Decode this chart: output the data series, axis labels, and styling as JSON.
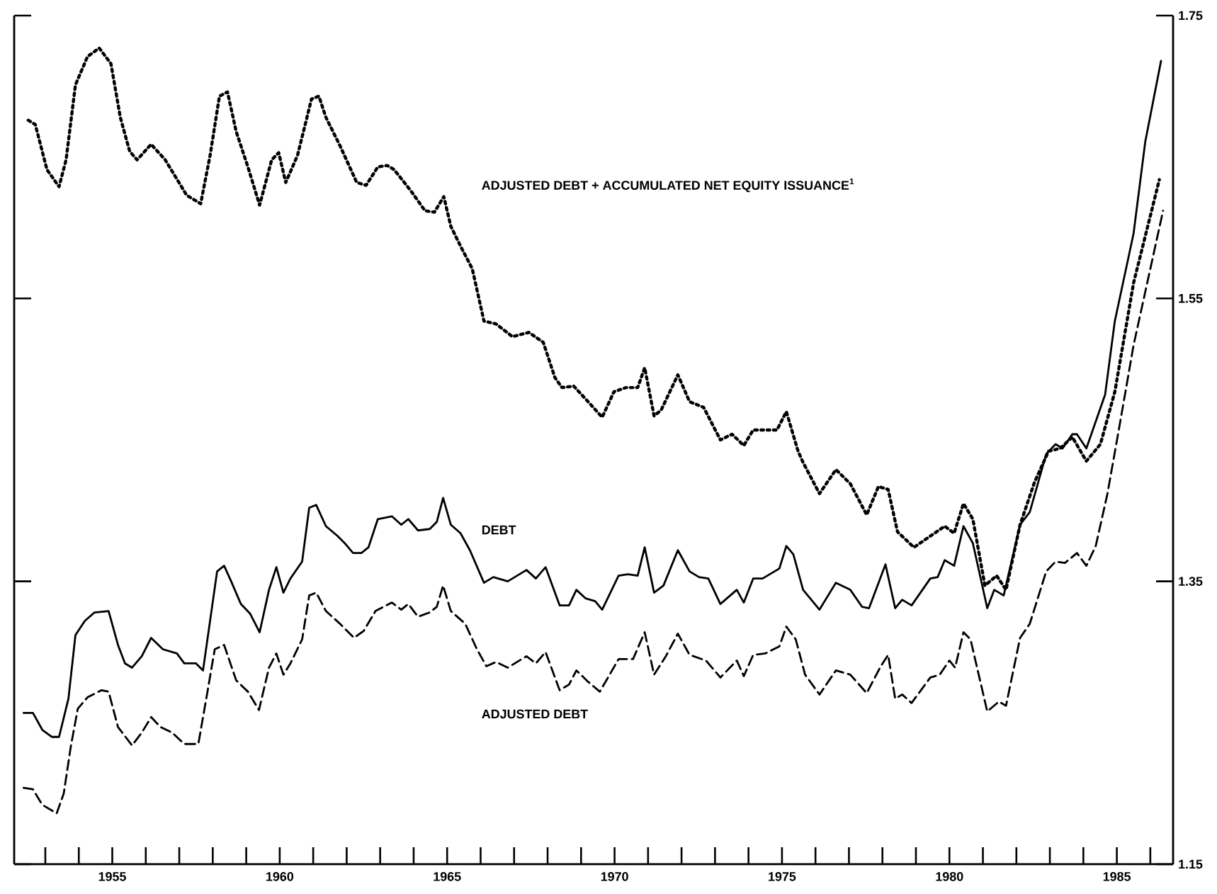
{
  "chart_data": {
    "type": "line",
    "xlim": [
      1952.07,
      1986.68
    ],
    "xticks": [
      {
        "value": 1953,
        "label": null
      },
      {
        "value": 1954,
        "label": null
      },
      1955,
      {
        "value": 1956,
        "label": null
      },
      {
        "value": 1957,
        "label": null
      },
      {
        "value": 1958,
        "label": null
      },
      {
        "value": 1959,
        "label": null
      },
      1960,
      {
        "value": 1961,
        "label": null
      },
      {
        "value": 1962,
        "label": null
      },
      {
        "value": 1963,
        "label": null
      },
      {
        "value": 1964,
        "label": null
      },
      1965,
      {
        "value": 1966,
        "label": null
      },
      {
        "value": 1967,
        "label": null
      },
      {
        "value": 1968,
        "label": null
      },
      {
        "value": 1969,
        "label": null
      },
      1970,
      {
        "value": 1971,
        "label": null
      },
      {
        "value": 1972,
        "label": null
      },
      {
        "value": 1973,
        "label": null
      },
      {
        "value": 1974,
        "label": null
      },
      1975,
      {
        "value": 1976,
        "label": null
      },
      {
        "value": 1977,
        "label": null
      },
      {
        "value": 1978,
        "label": null
      },
      {
        "value": 1979,
        "label": null
      },
      1980,
      {
        "value": 1981,
        "label": null
      },
      {
        "value": 1982,
        "label": null
      },
      {
        "value": 1983,
        "label": null
      },
      {
        "value": 1984,
        "label": null
      },
      1985,
      {
        "value": 1986,
        "label": null
      }
    ],
    "ylim": [
      1.15,
      1.75
    ],
    "yticks": [
      1.15,
      1.35,
      1.55,
      1.75
    ],
    "grid": false,
    "legend": false,
    "series": [
      {
        "name": "DEBT",
        "color": "#000000",
        "line_style": "solid",
        "x": [
          1952.35,
          1952.63,
          1952.91,
          1953.2,
          1953.41,
          1953.69,
          1953.9,
          1954.18,
          1954.47,
          1954.89,
          1955.17,
          1955.38,
          1955.59,
          1955.88,
          1956.16,
          1956.51,
          1956.93,
          1957.15,
          1957.5,
          1957.71,
          1958.13,
          1958.34,
          1958.55,
          1958.84,
          1959.12,
          1959.4,
          1959.68,
          1959.9,
          1960.11,
          1960.32,
          1960.67,
          1960.88,
          1961.09,
          1961.38,
          1961.73,
          1961.94,
          1962.19,
          1962.44,
          1962.65,
          1962.93,
          1963.35,
          1963.63,
          1963.84,
          1964.13,
          1964.48,
          1964.69,
          1964.88,
          1965.11,
          1965.4,
          1965.68,
          1966.1,
          1966.38,
          1966.81,
          1967.37,
          1967.65,
          1967.94,
          1968.36,
          1968.64,
          1968.86,
          1969.13,
          1969.42,
          1969.63,
          1970.12,
          1970.4,
          1970.69,
          1970.9,
          1971.18,
          1971.46,
          1971.89,
          1972.24,
          1972.52,
          1972.8,
          1973.16,
          1973.65,
          1973.86,
          1974.14,
          1974.42,
          1974.92,
          1975.13,
          1975.34,
          1975.63,
          1976.12,
          1976.61,
          1977.04,
          1977.39,
          1977.6,
          1978.09,
          1978.38,
          1978.59,
          1978.87,
          1979.43,
          1979.65,
          1979.86,
          1980.14,
          1980.42,
          1980.7,
          1981.13,
          1981.34,
          1981.62,
          1982.11,
          1982.4,
          1982.89,
          1983.17,
          1983.38,
          1983.67,
          1983.81,
          1984.09,
          1984.65,
          1984.94,
          1985.5,
          1985.85,
          1986.32
        ],
        "values": [
          1.257,
          1.257,
          1.245,
          1.24,
          1.24,
          1.267,
          1.312,
          1.322,
          1.328,
          1.329,
          1.305,
          1.292,
          1.289,
          1.297,
          1.31,
          1.302,
          1.299,
          1.292,
          1.292,
          1.287,
          1.357,
          1.361,
          1.35,
          1.334,
          1.327,
          1.314,
          1.344,
          1.36,
          1.342,
          1.352,
          1.364,
          1.402,
          1.404,
          1.389,
          1.382,
          1.377,
          1.37,
          1.37,
          1.374,
          1.394,
          1.396,
          1.39,
          1.394,
          1.386,
          1.387,
          1.392,
          1.409,
          1.39,
          1.384,
          1.372,
          1.349,
          1.353,
          1.35,
          1.358,
          1.352,
          1.36,
          1.333,
          1.333,
          1.344,
          1.338,
          1.336,
          1.33,
          1.354,
          1.355,
          1.354,
          1.374,
          1.342,
          1.347,
          1.372,
          1.357,
          1.353,
          1.352,
          1.334,
          1.344,
          1.335,
          1.352,
          1.352,
          1.359,
          1.375,
          1.369,
          1.344,
          1.33,
          1.349,
          1.344,
          1.332,
          1.331,
          1.362,
          1.331,
          1.337,
          1.333,
          1.352,
          1.353,
          1.365,
          1.361,
          1.389,
          1.377,
          1.331,
          1.344,
          1.34,
          1.39,
          1.399,
          1.44,
          1.447,
          1.444,
          1.454,
          1.454,
          1.444,
          1.482,
          1.534,
          1.596,
          1.661,
          1.718
        ]
      },
      {
        "name": "ADJUSTED DEBT",
        "color": "#000000",
        "line_style": "dashed",
        "x": [
          1952.35,
          1952.63,
          1952.91,
          1953.34,
          1953.55,
          1953.76,
          1953.97,
          1954.26,
          1954.68,
          1954.89,
          1955.17,
          1955.59,
          1955.88,
          1956.16,
          1956.44,
          1956.79,
          1957.15,
          1957.57,
          1957.85,
          1958.06,
          1958.34,
          1958.7,
          1959.05,
          1959.38,
          1959.68,
          1959.9,
          1960.11,
          1960.32,
          1960.67,
          1960.88,
          1961.09,
          1961.38,
          1961.8,
          1962.22,
          1962.51,
          1962.86,
          1963.35,
          1963.63,
          1963.84,
          1964.13,
          1964.48,
          1964.69,
          1964.88,
          1965.11,
          1965.54,
          1965.89,
          1966.17,
          1966.46,
          1966.81,
          1967.37,
          1967.65,
          1967.94,
          1968.36,
          1968.64,
          1968.86,
          1969.21,
          1969.56,
          1970.12,
          1970.55,
          1970.9,
          1971.18,
          1971.53,
          1971.89,
          1972.24,
          1972.73,
          1973.16,
          1973.65,
          1973.86,
          1974.14,
          1974.5,
          1974.92,
          1975.13,
          1975.41,
          1975.69,
          1976.12,
          1976.61,
          1977.04,
          1977.53,
          1977.95,
          1978.17,
          1978.38,
          1978.59,
          1978.87,
          1979.43,
          1979.71,
          1980.0,
          1980.17,
          1980.42,
          1980.63,
          1981.13,
          1981.48,
          1981.69,
          1982.11,
          1982.4,
          1982.89,
          1983.17,
          1983.45,
          1983.81,
          1984.09,
          1984.37,
          1984.72,
          1985.08,
          1985.5,
          1986.38
        ],
        "values": [
          1.204,
          1.203,
          1.192,
          1.186,
          1.2,
          1.233,
          1.26,
          1.268,
          1.273,
          1.272,
          1.247,
          1.234,
          1.243,
          1.254,
          1.247,
          1.243,
          1.235,
          1.235,
          1.273,
          1.302,
          1.305,
          1.28,
          1.272,
          1.259,
          1.289,
          1.299,
          1.284,
          1.292,
          1.309,
          1.34,
          1.342,
          1.329,
          1.32,
          1.31,
          1.315,
          1.329,
          1.335,
          1.33,
          1.334,
          1.325,
          1.328,
          1.332,
          1.347,
          1.329,
          1.32,
          1.302,
          1.29,
          1.293,
          1.289,
          1.297,
          1.292,
          1.3,
          1.273,
          1.277,
          1.287,
          1.279,
          1.272,
          1.295,
          1.295,
          1.314,
          1.284,
          1.297,
          1.313,
          1.298,
          1.294,
          1.282,
          1.294,
          1.283,
          1.298,
          1.299,
          1.304,
          1.318,
          1.309,
          1.284,
          1.27,
          1.287,
          1.284,
          1.271,
          1.29,
          1.298,
          1.267,
          1.27,
          1.264,
          1.282,
          1.284,
          1.294,
          1.289,
          1.314,
          1.309,
          1.258,
          1.265,
          1.262,
          1.31,
          1.32,
          1.357,
          1.364,
          1.363,
          1.37,
          1.361,
          1.375,
          1.412,
          1.46,
          1.517,
          1.612
        ]
      },
      {
        "name": "ADJUSTED DEBT + ACCUMULATED NET EQUITY ISSUANCE$^{1}$",
        "color": "#000000",
        "line_style": "dotted",
        "x": [
          1952.49,
          1952.7,
          1953.05,
          1953.41,
          1953.62,
          1953.9,
          1954.26,
          1954.61,
          1954.96,
          1955.24,
          1955.52,
          1955.74,
          1956.16,
          1956.58,
          1957.22,
          1957.64,
          1957.92,
          1958.2,
          1958.44,
          1958.7,
          1959.05,
          1959.4,
          1959.76,
          1959.97,
          1960.18,
          1960.53,
          1960.95,
          1961.17,
          1961.38,
          1961.8,
          1962.3,
          1962.58,
          1962.93,
          1963.21,
          1963.42,
          1963.92,
          1964.34,
          1964.62,
          1964.9,
          1965.11,
          1965.4,
          1965.75,
          1966.1,
          1966.46,
          1966.95,
          1967.44,
          1967.87,
          1968.22,
          1968.43,
          1968.78,
          1969.21,
          1969.63,
          1969.98,
          1970.34,
          1970.69,
          1970.9,
          1971.18,
          1971.39,
          1971.89,
          1972.24,
          1972.66,
          1973.16,
          1973.51,
          1973.86,
          1974.14,
          1974.85,
          1975.13,
          1975.48,
          1975.63,
          1976.12,
          1976.61,
          1977.04,
          1977.53,
          1977.88,
          1978.17,
          1978.45,
          1978.94,
          1979.43,
          1979.86,
          1980.14,
          1980.42,
          1980.7,
          1981.06,
          1981.41,
          1981.69,
          1982.11,
          1982.54,
          1982.96,
          1983.31,
          1983.67,
          1984.09,
          1984.51,
          1984.94,
          1985.5,
          1986.27
        ],
        "values": [
          1.676,
          1.673,
          1.641,
          1.629,
          1.648,
          1.701,
          1.721,
          1.727,
          1.716,
          1.678,
          1.654,
          1.648,
          1.659,
          1.648,
          1.623,
          1.617,
          1.651,
          1.693,
          1.696,
          1.668,
          1.643,
          1.616,
          1.648,
          1.653,
          1.632,
          1.651,
          1.691,
          1.693,
          1.678,
          1.658,
          1.632,
          1.63,
          1.643,
          1.644,
          1.641,
          1.626,
          1.612,
          1.611,
          1.622,
          1.601,
          1.587,
          1.571,
          1.534,
          1.532,
          1.523,
          1.526,
          1.519,
          1.494,
          1.487,
          1.488,
          1.477,
          1.466,
          1.484,
          1.487,
          1.487,
          1.501,
          1.467,
          1.471,
          1.496,
          1.477,
          1.473,
          1.45,
          1.454,
          1.446,
          1.457,
          1.457,
          1.47,
          1.442,
          1.434,
          1.412,
          1.429,
          1.419,
          1.397,
          1.417,
          1.415,
          1.385,
          1.374,
          1.382,
          1.389,
          1.384,
          1.405,
          1.394,
          1.347,
          1.354,
          1.344,
          1.39,
          1.42,
          1.442,
          1.444,
          1.452,
          1.435,
          1.447,
          1.484,
          1.561,
          1.634
        ]
      }
    ]
  }
}
